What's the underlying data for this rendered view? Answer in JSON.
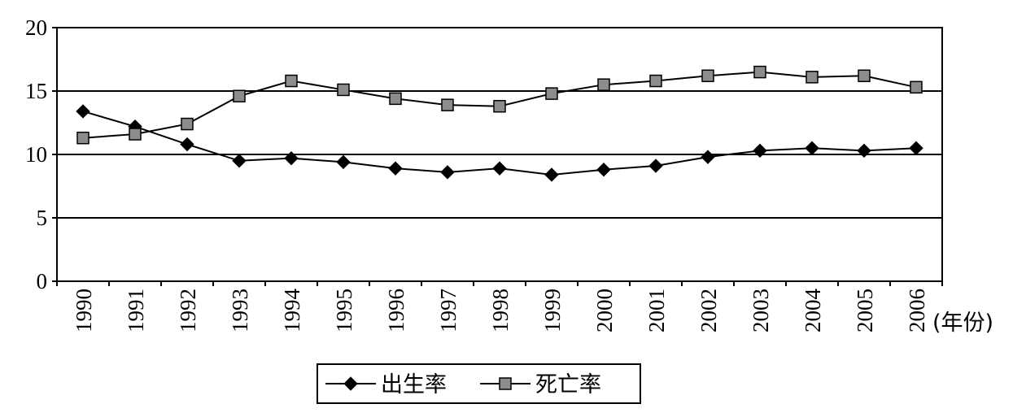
{
  "chart_data": {
    "type": "line",
    "title": "",
    "xlabel": "(年份)",
    "ylabel": "",
    "ylim": [
      0,
      20
    ],
    "yticks": [
      0,
      5,
      10,
      15,
      20
    ],
    "grid": "horizontal",
    "legend_position": "bottom-center",
    "categories": [
      "1990",
      "1991",
      "1992",
      "1993",
      "1994",
      "1995",
      "1996",
      "1997",
      "1998",
      "1999",
      "2000",
      "2001",
      "2002",
      "2003",
      "2004",
      "2005",
      "2006"
    ],
    "series": [
      {
        "name": "出生率",
        "marker": "diamond",
        "color": "#000000",
        "values": [
          13.4,
          12.2,
          10.8,
          9.5,
          9.7,
          9.4,
          8.9,
          8.6,
          8.9,
          8.4,
          8.8,
          9.1,
          9.8,
          10.3,
          10.5,
          10.3,
          10.5
        ]
      },
      {
        "name": "死亡率",
        "marker": "square",
        "color": "#808080",
        "values": [
          11.3,
          11.6,
          12.4,
          14.6,
          15.8,
          15.1,
          14.4,
          13.9,
          13.8,
          14.8,
          15.5,
          15.8,
          16.2,
          16.5,
          16.1,
          16.2,
          15.3
        ]
      }
    ]
  }
}
